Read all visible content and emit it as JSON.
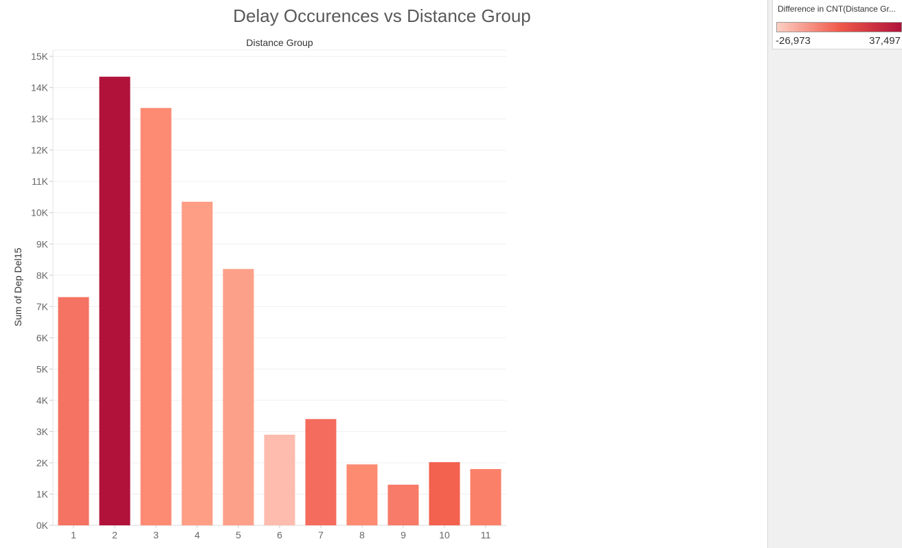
{
  "chart_data": {
    "type": "bar",
    "title": "Delay Occurences vs Distance Group",
    "column_header": "Distance Group",
    "xlabel": "",
    "ylabel": "Sum of Dep Del15",
    "categories": [
      "1",
      "2",
      "3",
      "4",
      "5",
      "6",
      "7",
      "8",
      "9",
      "10",
      "11"
    ],
    "values": [
      7300,
      14350,
      13350,
      10350,
      8200,
      2900,
      3400,
      1950,
      1300,
      2020,
      1800
    ],
    "bar_colors": [
      "#f47362",
      "#b0123a",
      "#fd8b74",
      "#fd9e85",
      "#fda08a",
      "#fdbcae",
      "#f46c5e",
      "#fc8b72",
      "#f77b68",
      "#f3614f",
      "#fb8069"
    ],
    "ylim": [
      0,
      15000
    ],
    "yticks": [
      0,
      1000,
      2000,
      3000,
      4000,
      5000,
      6000,
      7000,
      8000,
      9000,
      10000,
      11000,
      12000,
      13000,
      14000,
      15000
    ],
    "ytick_labels": [
      "0K",
      "1K",
      "2K",
      "3K",
      "4K",
      "5K",
      "6K",
      "7K",
      "8K",
      "9K",
      "10K",
      "11K",
      "12K",
      "13K",
      "14K",
      "15K"
    ],
    "grid": true,
    "legend": {
      "title": "Difference in CNT(Distance Gr...",
      "min_label": "-26,973",
      "max_label": "37,497",
      "color_low": "#fdd0c4",
      "color_mid": "#f05a4a",
      "color_high": "#b0123a"
    }
  }
}
